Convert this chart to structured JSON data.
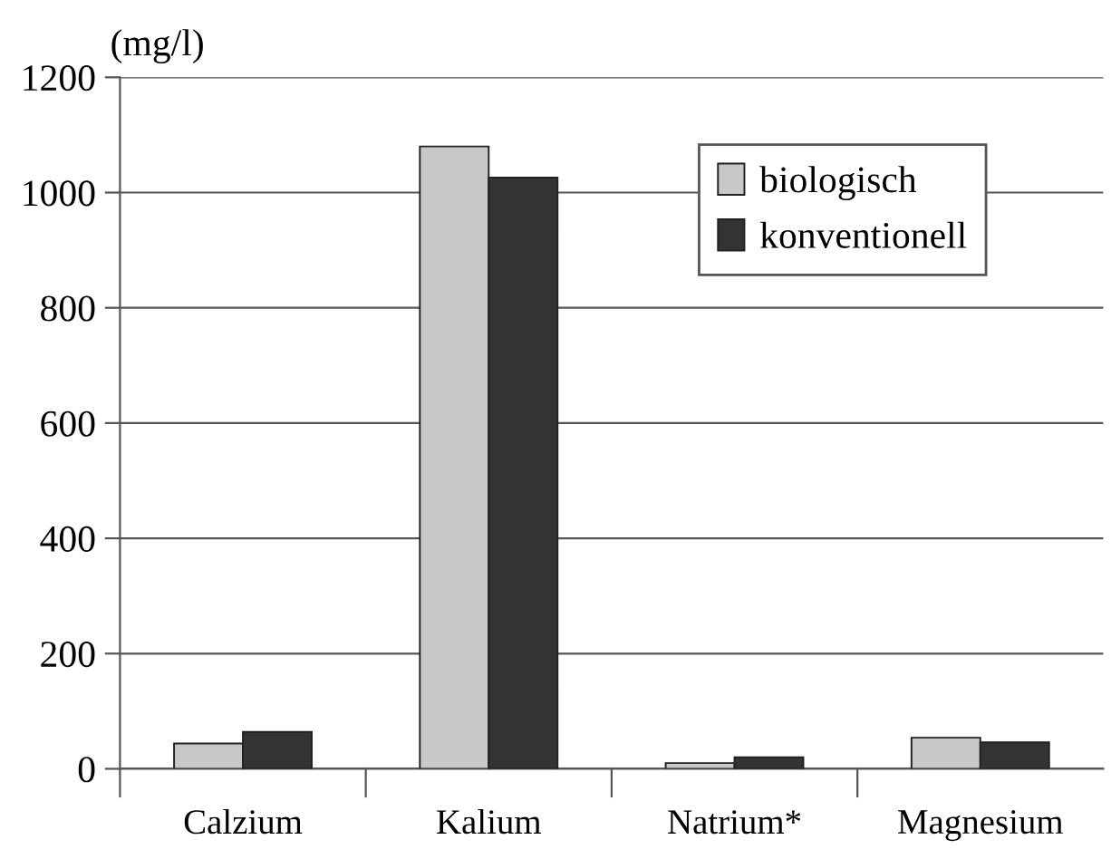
{
  "chart_data": {
    "type": "bar",
    "ylabel": "(mg/l)",
    "categories": [
      "Calzium",
      "Kalium",
      "Natrium*",
      "Magnesium"
    ],
    "series": [
      {
        "name": "biologisch",
        "color": "#c8c8c8",
        "values": [
          44,
          1080,
          10,
          54
        ]
      },
      {
        "name": "konventionell",
        "color": "#333333",
        "values": [
          64,
          1026,
          20,
          46
        ]
      }
    ],
    "ylim": [
      0,
      1200
    ],
    "yticks": [
      0,
      200,
      400,
      600,
      800,
      1000,
      1200
    ],
    "grid": "y",
    "legend": "top right"
  }
}
